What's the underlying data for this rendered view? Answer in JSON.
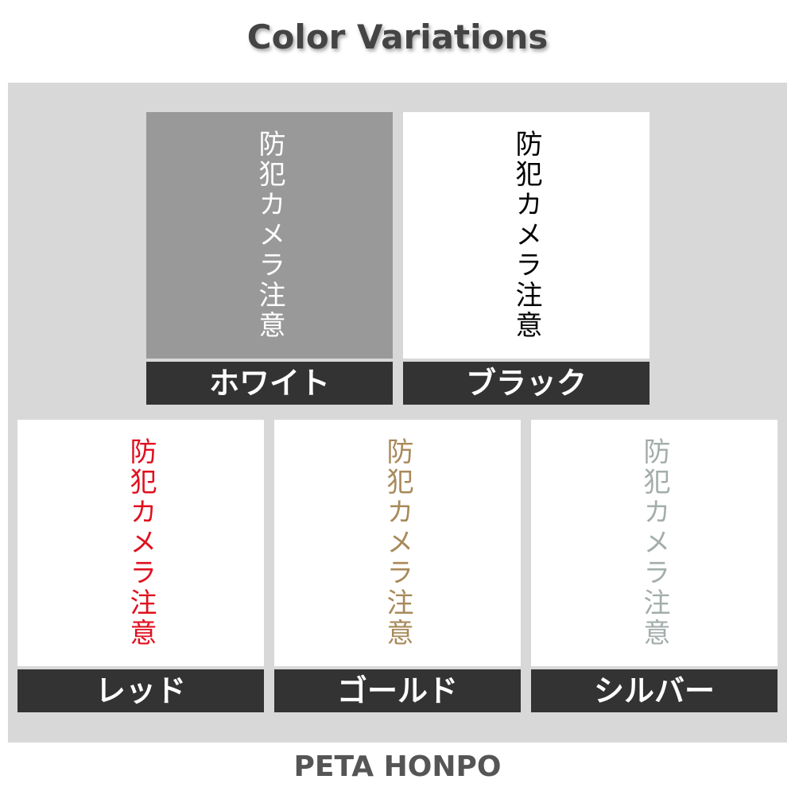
{
  "title": "Color Variations",
  "sign_text": "防犯カメラ注意",
  "variants": [
    {
      "label": "ホワイト",
      "text_color": "#ffffff",
      "background": "#999999"
    },
    {
      "label": "ブラック",
      "text_color": "#000000",
      "background": "#ffffff"
    },
    {
      "label": "レッド",
      "text_color": "#e0101e",
      "background": "#ffffff"
    },
    {
      "label": "ゴールド",
      "text_color": "#a8895a",
      "background": "#ffffff"
    },
    {
      "label": "シルバー",
      "text_color": "#a3adac",
      "background": "#ffffff"
    }
  ],
  "footer": "PETA HONPO"
}
